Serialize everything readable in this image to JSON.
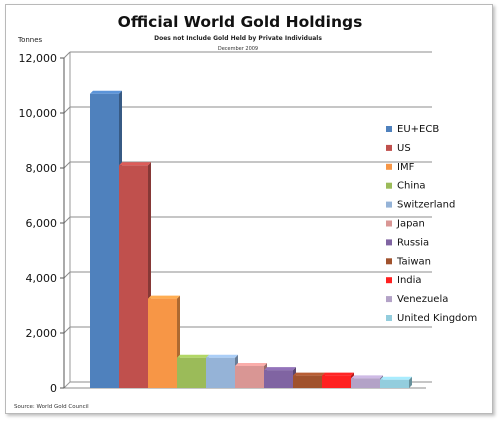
{
  "chart_data": {
    "type": "bar",
    "title": "Official World Gold Holdings",
    "subtitle": "Does not Include Gold Held by Private Individuals",
    "date": "December 2009",
    "ylabel": "Tonnes",
    "source": "Source: World Gold Council",
    "ylim": [
      0,
      12000
    ],
    "yticks": [
      "0",
      "2,000",
      "4,000",
      "6,000",
      "8,000",
      "10,000",
      "12,000"
    ],
    "grid": true,
    "legend_position": "right",
    "categories": [
      "EU+ECB",
      "US",
      "IMF",
      "China",
      "Switzerland",
      "Japan",
      "Russia",
      "Taiwan",
      "India",
      "Venezuela",
      "United Kingdom"
    ],
    "values": [
      10700,
      8100,
      3250,
      1100,
      1100,
      800,
      650,
      450,
      450,
      350,
      300
    ],
    "colors": [
      "#4f81bd",
      "#c0504d",
      "#f79646",
      "#9bbb59",
      "#95b3d7",
      "#d99694",
      "#8064a2",
      "#a0522d",
      "#ff2020",
      "#b3a2c7",
      "#93cddd"
    ]
  }
}
